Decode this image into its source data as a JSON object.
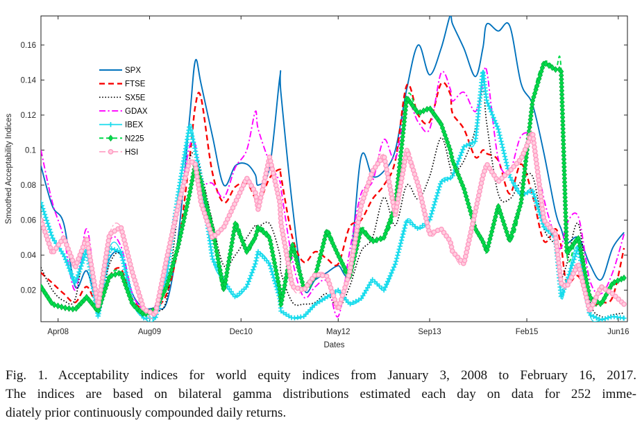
{
  "figure": {
    "caption_lines": [
      "Fig. 1. Acceptability indices for world equity indices from January 3, 2008 to February 16, 2017.",
      "The indices are based on bilateral gamma distributions estimated each day on data for 252 imme-",
      "diately prior continuously compounded daily returns."
    ]
  },
  "chart_data": {
    "type": "line",
    "title": "",
    "xlabel": "Dates",
    "ylabel": "Smoothed Acceptability Indices",
    "x_unit": "months since Jan 2008",
    "xlim": [
      0,
      102.6
    ],
    "ylim": [
      0.002,
      0.1766
    ],
    "grid": false,
    "legend_position": "upper-left-inside",
    "axis_color": "#262626",
    "x_ticks": [
      {
        "m": 3,
        "label": "Apr08"
      },
      {
        "m": 19,
        "label": "Aug09"
      },
      {
        "m": 35,
        "label": "Dec10"
      },
      {
        "m": 52,
        "label": "May12"
      },
      {
        "m": 68,
        "label": "Sep13"
      },
      {
        "m": 85,
        "label": "Feb15"
      },
      {
        "m": 101,
        "label": "Jun16"
      }
    ],
    "y_ticks": [
      {
        "v": 0.02,
        "label": "0.02"
      },
      {
        "v": 0.04,
        "label": "0.04"
      },
      {
        "v": 0.06,
        "label": "0.06"
      },
      {
        "v": 0.08,
        "label": "0.08"
      },
      {
        "v": 0.1,
        "label": "0.1"
      },
      {
        "v": 0.12,
        "label": "0.12"
      },
      {
        "v": 0.14,
        "label": "0.14"
      },
      {
        "v": 0.16,
        "label": "0.16"
      }
    ],
    "x_months": [
      0,
      2,
      4,
      6,
      8,
      10,
      12,
      14,
      16,
      18,
      20,
      22,
      24,
      26,
      27,
      28,
      30,
      32,
      34,
      36,
      37.5,
      38,
      40,
      41.8,
      42,
      44,
      46,
      48,
      50,
      52,
      54,
      56,
      58,
      60,
      62,
      64,
      66,
      68,
      70,
      71.6,
      72,
      74,
      76,
      77.3,
      78,
      80,
      82,
      84,
      86,
      88,
      90,
      91,
      92,
      94,
      96,
      98,
      100,
      102
    ],
    "series": [
      {
        "name": "SPX",
        "color": "#0072BD",
        "style": "solid",
        "marker": "none",
        "width": 1.9,
        "values": [
          0.091,
          0.068,
          0.058,
          0.022,
          0.031,
          0.013,
          0.038,
          0.04,
          0.018,
          0.01,
          0.01,
          0.013,
          0.05,
          0.118,
          0.151,
          0.138,
          0.108,
          0.08,
          0.091,
          0.092,
          0.086,
          0.08,
          0.09,
          0.142,
          0.132,
          0.068,
          0.021,
          0.026,
          0.03,
          0.034,
          0.032,
          0.096,
          0.085,
          0.088,
          0.1,
          0.135,
          0.16,
          0.143,
          0.158,
          0.177,
          0.172,
          0.158,
          0.142,
          0.158,
          0.172,
          0.168,
          0.171,
          0.138,
          0.126,
          0.098,
          0.065,
          0.055,
          0.047,
          0.05,
          0.035,
          0.026,
          0.044,
          0.053
        ]
      },
      {
        "name": "FTSE",
        "color": "#F80000",
        "style": "dashed",
        "marker": "none",
        "width": 2.4,
        "values": [
          0.03,
          0.024,
          0.018,
          0.013,
          0.022,
          0.012,
          0.028,
          0.032,
          0.015,
          0.009,
          0.01,
          0.018,
          0.045,
          0.095,
          0.125,
          0.13,
          0.087,
          0.07,
          0.079,
          0.081,
          0.072,
          0.068,
          0.084,
          0.089,
          0.085,
          0.05,
          0.036,
          0.042,
          0.038,
          0.035,
          0.056,
          0.06,
          0.072,
          0.08,
          0.094,
          0.137,
          0.12,
          0.116,
          0.138,
          0.132,
          0.121,
          0.112,
          0.096,
          0.1,
          0.098,
          0.094,
          0.075,
          0.092,
          0.074,
          0.048,
          0.055,
          0.045,
          0.024,
          0.028,
          0.012,
          0.013,
          0.016,
          0.044
        ]
      },
      {
        "name": "SX5E",
        "color": "#000000",
        "style": "dotted",
        "marker": "none",
        "width": 1.7,
        "values": [
          0.033,
          0.02,
          0.014,
          0.015,
          0.048,
          0.01,
          0.035,
          0.04,
          0.014,
          0.007,
          0.008,
          0.015,
          0.065,
          0.095,
          0.097,
          0.088,
          0.059,
          0.034,
          0.04,
          0.05,
          0.057,
          0.056,
          0.058,
          0.04,
          0.03,
          0.013,
          0.012,
          0.013,
          0.018,
          0.01,
          0.022,
          0.042,
          0.05,
          0.073,
          0.057,
          0.08,
          0.072,
          0.085,
          0.107,
          0.09,
          0.086,
          0.094,
          0.112,
          0.135,
          0.115,
          0.075,
          0.072,
          0.082,
          0.085,
          0.055,
          0.045,
          0.028,
          0.035,
          0.058,
          0.014,
          0.005,
          0.006,
          0.007
        ]
      },
      {
        "name": "GDAX",
        "color": "#FF00FF",
        "style": "dashdot",
        "marker": "none",
        "width": 1.9,
        "values": [
          0.1,
          0.07,
          0.05,
          0.02,
          0.055,
          0.014,
          0.048,
          0.045,
          0.018,
          0.009,
          0.011,
          0.034,
          0.066,
          0.102,
          0.103,
          0.082,
          0.081,
          0.073,
          0.09,
          0.1,
          0.122,
          0.112,
          0.093,
          0.082,
          0.078,
          0.037,
          0.016,
          0.022,
          0.025,
          0.005,
          0.042,
          0.075,
          0.082,
          0.106,
          0.095,
          0.127,
          0.116,
          0.112,
          0.144,
          0.135,
          0.128,
          0.133,
          0.122,
          0.138,
          0.145,
          0.095,
          0.088,
          0.108,
          0.105,
          0.072,
          0.05,
          0.044,
          0.058,
          0.062,
          0.026,
          0.018,
          0.03,
          0.052
        ]
      },
      {
        "name": "IBEX",
        "color": "#17DBEC",
        "style": "solid",
        "marker": "plus",
        "marker_fill": "#17DBEC",
        "width": 1.3,
        "values": [
          0.07,
          0.05,
          0.04,
          0.024,
          0.043,
          0.005,
          0.044,
          0.042,
          0.013,
          0.004,
          0.004,
          0.028,
          0.075,
          0.114,
          0.1,
          0.083,
          0.038,
          0.025,
          0.016,
          0.022,
          0.035,
          0.042,
          0.035,
          0.015,
          0.008,
          0.004,
          0.005,
          0.012,
          0.016,
          0.02,
          0.012,
          0.015,
          0.026,
          0.02,
          0.035,
          0.06,
          0.055,
          0.06,
          0.082,
          0.084,
          0.085,
          0.102,
          0.105,
          0.145,
          0.128,
          0.112,
          0.085,
          0.074,
          0.077,
          0.056,
          0.05,
          0.016,
          0.025,
          0.045,
          0.006,
          0.003,
          0.005,
          0.004
        ]
      },
      {
        "name": "N225",
        "color": "#00DC4B",
        "style": "dashed",
        "marker": "diamond",
        "marker_fill": "#00DC4B",
        "marker_edge": "#00A838",
        "width": 2.0,
        "values": [
          0.022,
          0.012,
          0.01,
          0.009,
          0.016,
          0.008,
          0.028,
          0.03,
          0.012,
          0.006,
          0.009,
          0.022,
          0.045,
          0.075,
          0.092,
          0.082,
          0.055,
          0.02,
          0.058,
          0.042,
          0.05,
          0.056,
          0.05,
          0.02,
          0.012,
          0.046,
          0.021,
          0.028,
          0.054,
          0.04,
          0.027,
          0.055,
          0.048,
          0.05,
          0.068,
          0.13,
          0.121,
          0.124,
          0.115,
          0.1,
          0.094,
          0.078,
          0.055,
          0.048,
          0.042,
          0.068,
          0.048,
          0.07,
          0.128,
          0.15,
          0.146,
          0.146,
          0.041,
          0.05,
          0.016,
          0.012,
          0.024,
          0.027
        ]
      },
      {
        "name": "HSI",
        "color": "#FFA3C6",
        "style": "dashdot",
        "marker": "circle",
        "marker_fill": "#FFD0E1",
        "marker_edge": "#FF9CC2",
        "width": 1.4,
        "values": [
          0.06,
          0.041,
          0.05,
          0.033,
          0.05,
          0.011,
          0.052,
          0.056,
          0.03,
          0.009,
          0.006,
          0.038,
          0.068,
          0.094,
          0.092,
          0.07,
          0.05,
          0.056,
          0.07,
          0.084,
          0.076,
          0.066,
          0.096,
          0.07,
          0.058,
          0.022,
          0.02,
          0.029,
          0.028,
          0.009,
          0.03,
          0.068,
          0.088,
          0.097,
          0.063,
          0.1,
          0.08,
          0.052,
          0.055,
          0.048,
          0.042,
          0.035,
          0.065,
          0.085,
          0.092,
          0.082,
          0.088,
          0.095,
          0.11,
          0.06,
          0.052,
          0.024,
          0.022,
          0.035,
          0.008,
          0.022,
          0.018,
          0.012
        ]
      }
    ]
  }
}
